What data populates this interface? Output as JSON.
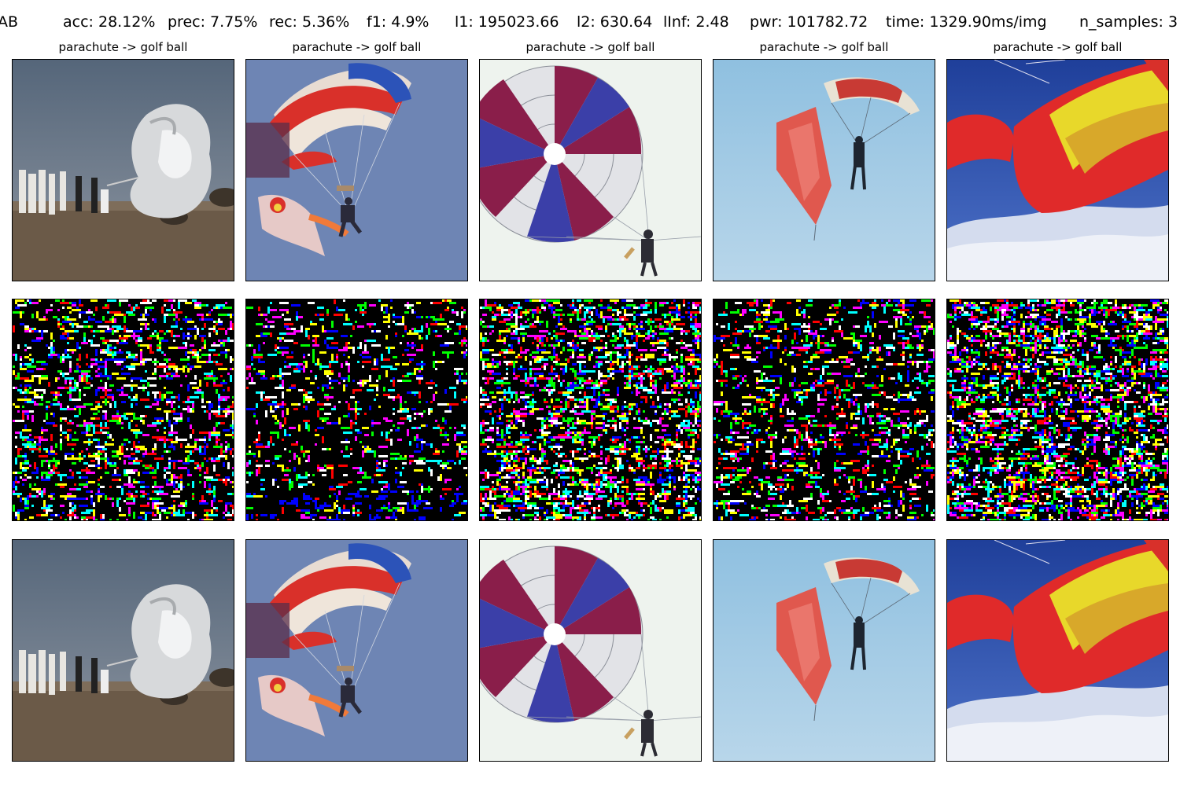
{
  "header": {
    "name": "AB",
    "metrics": [
      "acc: 28.12%",
      "prec: 7.75%",
      "rec: 5.36%",
      "f1: 4.9%",
      "l1: 195023.66",
      "l2: 630.64",
      "lInf: 2.48",
      "pwr: 101782.72",
      "time: 1329.90ms/img",
      "n_samples: 3"
    ]
  },
  "columns": [
    {
      "title": "parachute -> golf ball",
      "scene": "ground-parachute"
    },
    {
      "title": "parachute -> golf ball",
      "scene": "raf-canopy"
    },
    {
      "title": "parachute -> golf ball",
      "scene": "round-canopy"
    },
    {
      "title": "parachute -> golf ball",
      "scene": "red-drogue"
    },
    {
      "title": "parachute -> golf ball",
      "scene": "yellow-red-wing"
    }
  ],
  "rows": [
    "original-image",
    "perturbation-map",
    "adversarial-image"
  ],
  "colors": {
    "noise_palette": [
      "#ff0000",
      "#00ff00",
      "#0000ff",
      "#ffff00",
      "#ff00ff",
      "#00ffff",
      "#ffffff"
    ]
  }
}
